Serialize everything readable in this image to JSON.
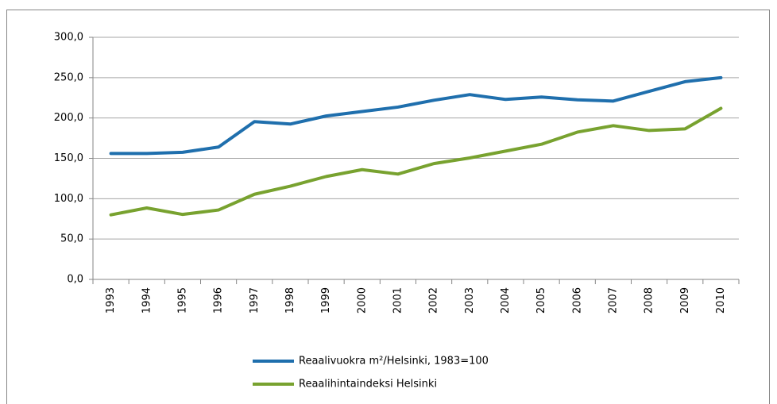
{
  "chart_data": {
    "type": "line",
    "categories": [
      "1993",
      "1994",
      "1995",
      "1996",
      "1997",
      "1998",
      "1999",
      "2000",
      "2001",
      "2002",
      "2003",
      "2004",
      "2005",
      "2006",
      "2007",
      "2008",
      "2009",
      "2010"
    ],
    "series": [
      {
        "name": "Reaalivuokra m²/Helsinki, 1983=100",
        "color": "#1f6fad",
        "values": [
          156,
          156,
          157.5,
          164,
          195.5,
          192.5,
          202.5,
          208,
          213.5,
          222,
          229,
          223,
          226,
          222.5,
          221,
          233,
          245,
          250
        ]
      },
      {
        "name": "Reaalihintaindeksi Helsinki",
        "color": "#78a22f",
        "values": [
          80,
          88.5,
          80.5,
          86,
          105.5,
          115.5,
          127.5,
          136,
          130.5,
          143.5,
          150.5,
          159,
          167.5,
          182.5,
          190.5,
          184.5,
          186.5,
          212
        ]
      }
    ],
    "ylim": [
      0,
      300
    ],
    "yticks": [
      {
        "value": 0,
        "label": "0,0"
      },
      {
        "value": 50,
        "label": "50,0"
      },
      {
        "value": 100,
        "label": "100,0"
      },
      {
        "value": 150,
        "label": "150,0"
      },
      {
        "value": 200,
        "label": "200,0"
      },
      {
        "value": 250,
        "label": "250,0"
      },
      {
        "value": 300,
        "label": "300,0"
      }
    ],
    "grid": true,
    "legend": "bottom"
  }
}
